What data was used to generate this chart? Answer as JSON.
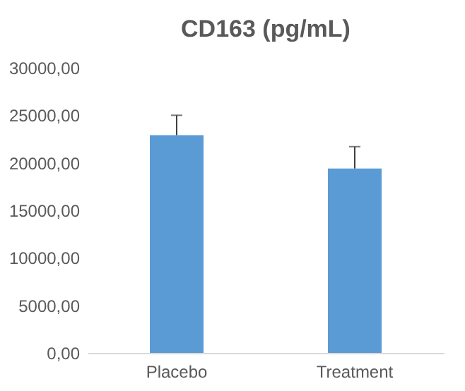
{
  "chart_data": {
    "type": "bar",
    "title": "CD163 (pg/mL)",
    "categories": [
      "Placebo",
      "Treatment"
    ],
    "values": [
      22900,
      19400
    ],
    "errors": [
      [
        22900,
        25000
      ],
      [
        19400,
        21700
      ]
    ],
    "color": "#5b9bd5",
    "ylim": [
      0,
      30000
    ],
    "yticks": [
      {
        "value": 0,
        "label": "0,00"
      },
      {
        "value": 5000,
        "label": "5000,00"
      },
      {
        "value": 10000,
        "label": "10000,00"
      },
      {
        "value": 15000,
        "label": "15000,00"
      },
      {
        "value": 20000,
        "label": "20000,00"
      },
      {
        "value": 25000,
        "label": "25000,00"
      },
      {
        "value": 30000,
        "label": "30000,00"
      }
    ],
    "grid": false
  }
}
